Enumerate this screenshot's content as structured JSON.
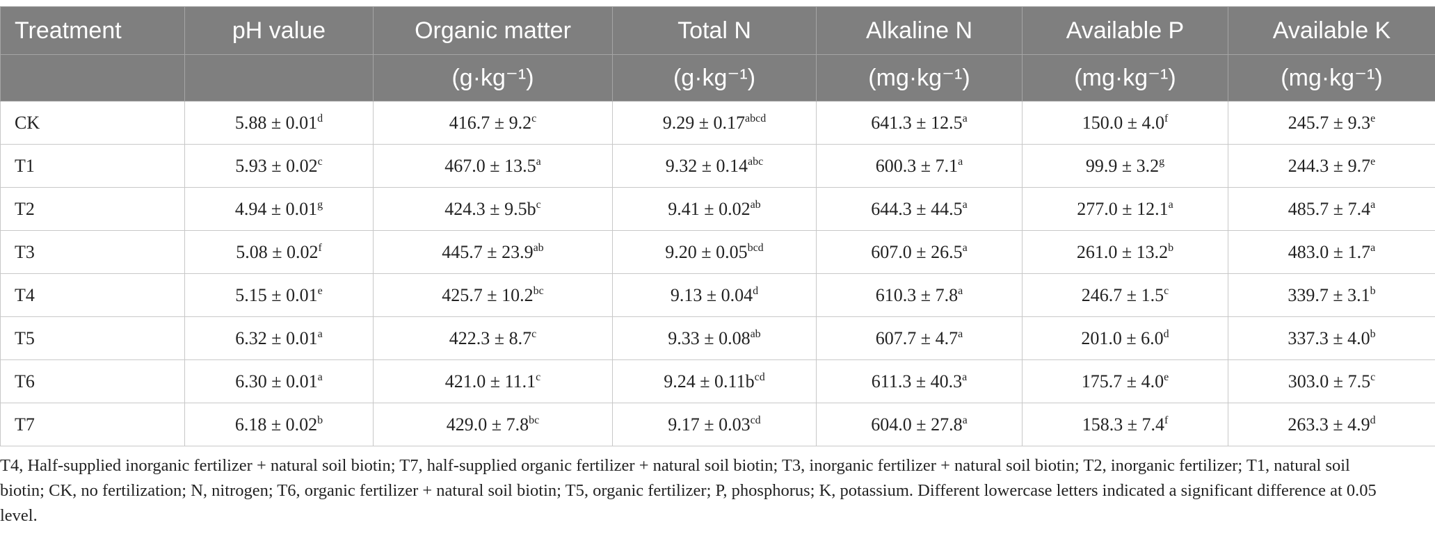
{
  "table": {
    "header": [
      {
        "title": "Treatment",
        "unit": null
      },
      {
        "title": "pH value",
        "unit": null
      },
      {
        "title": "Organic matter",
        "unit": "(g·kg⁻¹)"
      },
      {
        "title": "Total N",
        "unit": "(g·kg⁻¹)"
      },
      {
        "title": "Alkaline N",
        "unit": "(mg·kg⁻¹)"
      },
      {
        "title": "Available P",
        "unit": "(mg·kg⁻¹)"
      },
      {
        "title": "Available K",
        "unit": "(mg·kg⁻¹)"
      }
    ],
    "rows": [
      {
        "treatment": "CK",
        "cells": [
          {
            "text": "5.88 ± 0.01",
            "sup": "d"
          },
          {
            "text": "416.7 ± 9.2",
            "sup": "c"
          },
          {
            "text": "9.29 ± 0.17",
            "sup": "abcd"
          },
          {
            "text": "641.3 ± 12.5",
            "sup": "a"
          },
          {
            "text": "150.0 ± 4.0",
            "sup": "f"
          },
          {
            "text": "245.7 ± 9.3",
            "sup": "e"
          }
        ]
      },
      {
        "treatment": "T1",
        "cells": [
          {
            "text": "5.93 ± 0.02",
            "sup": "c"
          },
          {
            "text": "467.0 ± 13.5",
            "sup": "a"
          },
          {
            "text": "9.32 ± 0.14",
            "sup": "abc"
          },
          {
            "text": "600.3 ± 7.1",
            "sup": "a"
          },
          {
            "text": "99.9 ± 3.2",
            "sup": "g"
          },
          {
            "text": "244.3 ± 9.7",
            "sup": "e"
          }
        ]
      },
      {
        "treatment": "T2",
        "cells": [
          {
            "text": "4.94 ± 0.01",
            "sup": "g"
          },
          {
            "text": "424.3 ± 9.5b",
            "sup": "c"
          },
          {
            "text": "9.41 ± 0.02",
            "sup": "ab"
          },
          {
            "text": "644.3 ± 44.5",
            "sup": "a"
          },
          {
            "text": "277.0 ± 12.1",
            "sup": "a"
          },
          {
            "text": "485.7 ± 7.4",
            "sup": "a"
          }
        ]
      },
      {
        "treatment": "T3",
        "cells": [
          {
            "text": "5.08 ± 0.02",
            "sup": "f"
          },
          {
            "text": "445.7 ± 23.9",
            "sup": "ab"
          },
          {
            "text": "9.20 ± 0.05",
            "sup": "bcd"
          },
          {
            "text": "607.0 ± 26.5",
            "sup": "a"
          },
          {
            "text": "261.0 ± 13.2",
            "sup": "b"
          },
          {
            "text": "483.0 ± 1.7",
            "sup": "a"
          }
        ]
      },
      {
        "treatment": "T4",
        "cells": [
          {
            "text": "5.15 ± 0.01",
            "sup": "e"
          },
          {
            "text": "425.7 ± 10.2",
            "sup": "bc"
          },
          {
            "text": "9.13 ± 0.04",
            "sup": "d"
          },
          {
            "text": "610.3 ± 7.8",
            "sup": "a"
          },
          {
            "text": "246.7 ± 1.5",
            "sup": "c"
          },
          {
            "text": "339.7 ± 3.1",
            "sup": "b"
          }
        ]
      },
      {
        "treatment": "T5",
        "cells": [
          {
            "text": "6.32 ± 0.01",
            "sup": "a"
          },
          {
            "text": "422.3 ± 8.7",
            "sup": "c"
          },
          {
            "text": "9.33 ± 0.08",
            "sup": "ab"
          },
          {
            "text": "607.7 ± 4.7",
            "sup": "a"
          },
          {
            "text": "201.0 ± 6.0",
            "sup": "d"
          },
          {
            "text": "337.3 ± 4.0",
            "sup": "b"
          }
        ]
      },
      {
        "treatment": "T6",
        "cells": [
          {
            "text": "6.30 ± 0.01",
            "sup": "a"
          },
          {
            "text": "421.0 ± 11.1",
            "sup": "c"
          },
          {
            "text": "9.24 ± 0.11b",
            "sup": "cd"
          },
          {
            "text": "611.3 ± 40.3",
            "sup": "a"
          },
          {
            "text": "175.7 ± 4.0",
            "sup": "e"
          },
          {
            "text": "303.0 ± 7.5",
            "sup": "c"
          }
        ]
      },
      {
        "treatment": "T7",
        "cells": [
          {
            "text": "6.18 ± 0.02",
            "sup": "b"
          },
          {
            "text": "429.0 ± 7.8",
            "sup": "bc"
          },
          {
            "text": "9.17 ± 0.03",
            "sup": "cd"
          },
          {
            "text": "604.0 ± 27.8",
            "sup": "a"
          },
          {
            "text": "158.3 ± 7.4",
            "sup": "f"
          },
          {
            "text": "263.3 ± 4.9",
            "sup": "d"
          }
        ]
      }
    ]
  },
  "footnote": "T4, Half-supplied inorganic fertilizer + natural soil biotin; T7, half-supplied organic fertilizer + natural soil biotin; T3, inorganic fertilizer + natural soil biotin; T2, inorganic fertilizer; T1, natural soil biotin; CK, no fertilization; N, nitrogen; T6, organic fertilizer + natural soil biotin; T5, organic fertilizer; P, phosphorus; K, potassium. Different lowercase letters indicated a significant difference at 0.05 level."
}
